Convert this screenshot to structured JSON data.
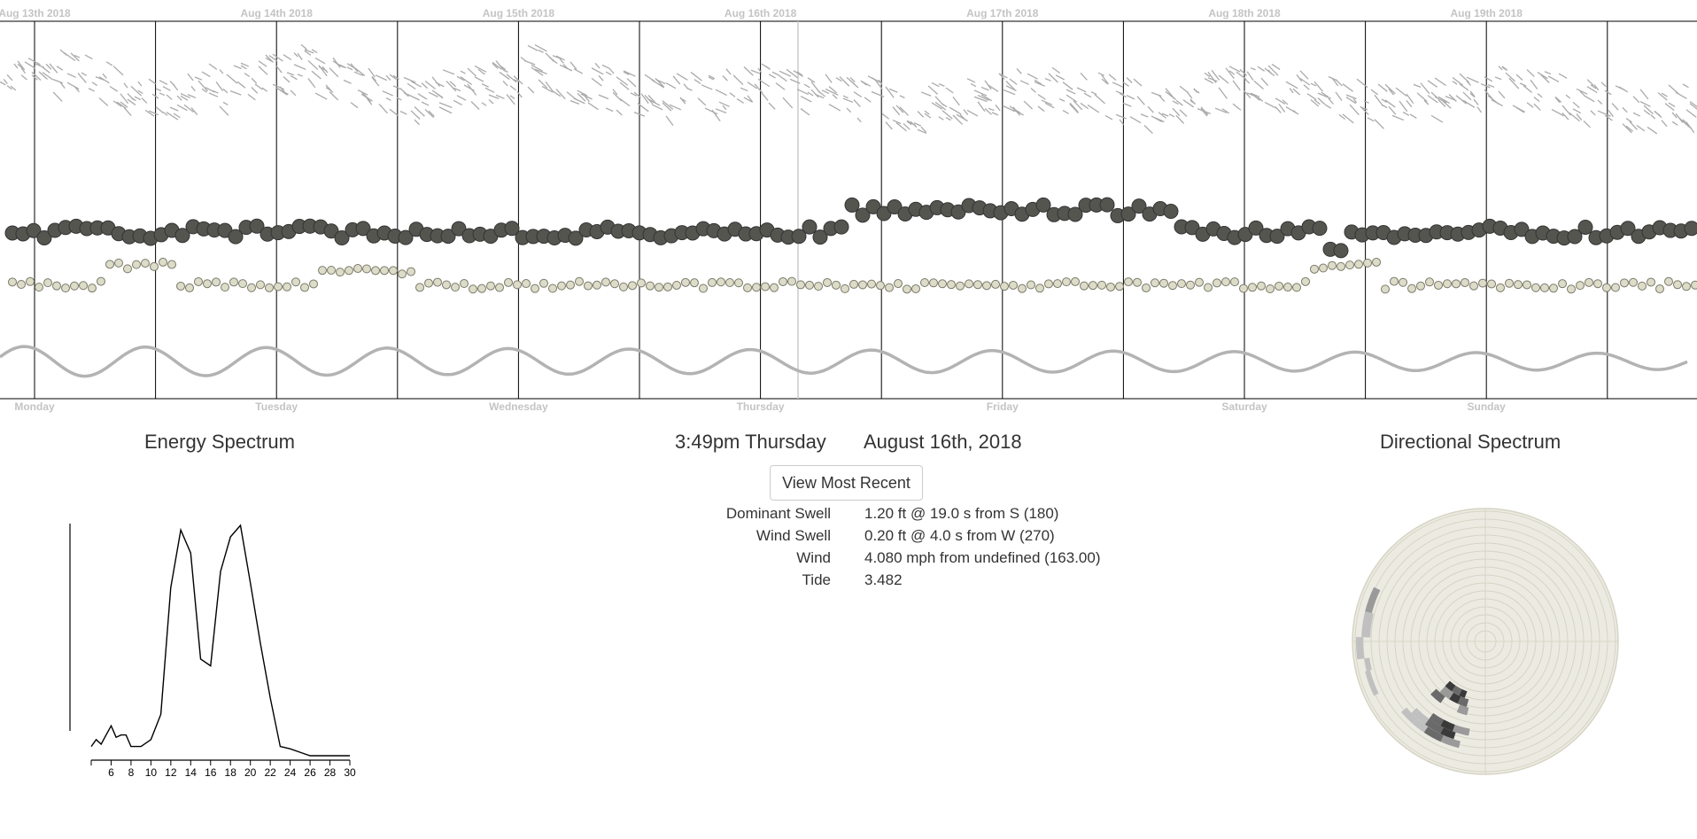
{
  "timeline": {
    "date_labels": [
      "Aug 13th 2018",
      "Aug 14th 2018",
      "Aug 15th 2018",
      "Aug 16th 2018",
      "Aug 17th 2018",
      "Aug 18th 2018",
      "Aug 19th 2018"
    ],
    "day_labels": [
      "Monday",
      "Tuesday",
      "Wednesday",
      "Thursday",
      "Friday",
      "Saturday",
      "Sunday"
    ],
    "colors": {
      "direction_ticks": "#aaaaaa",
      "dominant_dot": "#555550",
      "wind_dot": "#dcdcc8",
      "tide_line": "#b3b3b3",
      "grid_line": "#000000",
      "cursor_line": "#cccccc"
    }
  },
  "selected": {
    "time": "3:49pm Thursday",
    "date": "August 16th, 2018"
  },
  "energy_spectrum": {
    "title": "Energy Spectrum"
  },
  "directional_spectrum": {
    "title": "Directional Spectrum",
    "colors": {
      "background": "#ecebe2",
      "ring": "#d6d4c4",
      "bins": [
        "#3a3a3a",
        "#6a6a6a",
        "#9a9a9a",
        "#c0c0c0"
      ]
    }
  },
  "view_recent_label": "View Most Recent",
  "details": [
    {
      "label": "Dominant Swell",
      "value": "1.20 ft @ 19.0 s from S (180)"
    },
    {
      "label": "Wind Swell",
      "value": "0.20 ft @ 4.0 s from W (270)"
    },
    {
      "label": "Wind",
      "value": "4.080 mph from undefined (163.00)"
    },
    {
      "label": "Tide",
      "value": "3.482"
    }
  ],
  "chart_data": {
    "type": "line",
    "x": [
      4,
      4.5,
      5,
      5.5,
      6,
      6.5,
      7,
      7.5,
      8,
      8.5,
      9,
      10,
      11,
      12,
      13,
      14,
      15,
      16,
      17,
      18,
      19,
      20,
      21,
      22,
      23,
      24,
      25,
      26,
      27,
      28,
      30
    ],
    "y": [
      0.04,
      0.07,
      0.05,
      0.09,
      0.13,
      0.08,
      0.09,
      0.09,
      0.04,
      0.04,
      0.04,
      0.07,
      0.18,
      0.73,
      0.98,
      0.88,
      0.42,
      0.39,
      0.8,
      0.95,
      1.0,
      0.75,
      0.49,
      0.25,
      0.04,
      0.03,
      0.015,
      0.0,
      0.0,
      0.0,
      0.0
    ],
    "xticks": [
      "6",
      "8",
      "10",
      "12",
      "14",
      "16",
      "18",
      "20",
      "22",
      "24",
      "26",
      "28",
      "30"
    ],
    "xlim": [
      4,
      30
    ]
  }
}
